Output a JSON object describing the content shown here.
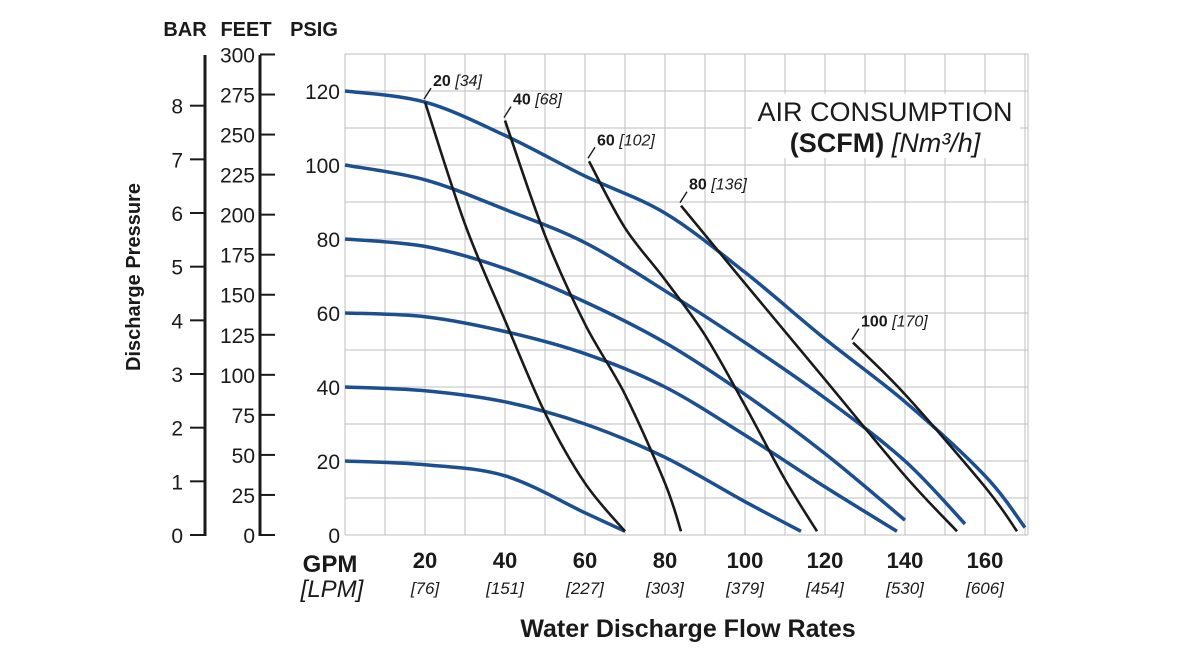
{
  "chart_data": {
    "type": "line",
    "title": "AIR CONSUMPTION",
    "subtitle_bold": "(SCFM)",
    "subtitle_italic": "[Nm³/h]",
    "xlabel": "Water Discharge Flow Rates",
    "ylabel": "Discharge Pressure",
    "x_unit": "GPM",
    "x_unit_alt": "[LPM]",
    "xlim": [
      0,
      170
    ],
    "ylim": [
      0,
      130
    ],
    "grid": true,
    "x_ticks": [
      {
        "gpm": "20",
        "lpm": "[76]"
      },
      {
        "gpm": "40",
        "lpm": "[151]"
      },
      {
        "gpm": "60",
        "lpm": "[227]"
      },
      {
        "gpm": "80",
        "lpm": "[303]"
      },
      {
        "gpm": "100",
        "lpm": "[379]"
      },
      {
        "gpm": "120",
        "lpm": "[454]"
      },
      {
        "gpm": "140",
        "lpm": "[530]"
      },
      {
        "gpm": "160",
        "lpm": "[606]"
      }
    ],
    "psig_axis": {
      "header": "PSIG",
      "ticks": [
        "0",
        "20",
        "40",
        "60",
        "80",
        "100",
        "120"
      ]
    },
    "feet_axis": {
      "header": "FEET",
      "ticks": [
        "0",
        "25",
        "50",
        "75",
        "100",
        "125",
        "150",
        "175",
        "200",
        "225",
        "250",
        "275",
        "300"
      ]
    },
    "bar_axis": {
      "header": "BAR",
      "ticks": [
        "0",
        "1",
        "2",
        "3",
        "4",
        "5",
        "6",
        "7",
        "8"
      ]
    },
    "performance_curves": [
      {
        "points": [
          [
            0,
            120
          ],
          [
            20,
            117
          ],
          [
            40,
            108
          ],
          [
            60,
            97
          ],
          [
            80,
            87
          ],
          [
            100,
            71
          ],
          [
            120,
            53
          ],
          [
            140,
            36
          ],
          [
            160,
            16
          ],
          [
            170,
            2
          ]
        ]
      },
      {
        "points": [
          [
            0,
            100
          ],
          [
            20,
            96
          ],
          [
            40,
            88
          ],
          [
            60,
            79
          ],
          [
            80,
            66
          ],
          [
            100,
            52
          ],
          [
            120,
            37
          ],
          [
            140,
            20
          ],
          [
            155,
            3
          ]
        ]
      },
      {
        "points": [
          [
            0,
            80
          ],
          [
            20,
            78
          ],
          [
            40,
            72
          ],
          [
            60,
            63
          ],
          [
            80,
            52
          ],
          [
            100,
            38
          ],
          [
            120,
            22
          ],
          [
            140,
            4
          ]
        ]
      },
      {
        "points": [
          [
            0,
            60
          ],
          [
            20,
            59
          ],
          [
            40,
            55
          ],
          [
            60,
            49
          ],
          [
            80,
            40
          ],
          [
            100,
            27
          ],
          [
            120,
            13
          ],
          [
            138,
            1
          ]
        ]
      },
      {
        "points": [
          [
            0,
            40
          ],
          [
            20,
            39
          ],
          [
            40,
            36
          ],
          [
            60,
            30
          ],
          [
            80,
            21
          ],
          [
            100,
            9
          ],
          [
            114,
            1
          ]
        ]
      },
      {
        "points": [
          [
            0,
            20
          ],
          [
            20,
            19
          ],
          [
            40,
            16
          ],
          [
            60,
            6
          ],
          [
            70,
            1
          ]
        ]
      }
    ],
    "air_curves": [
      {
        "label": "20",
        "label_alt": "[34]",
        "points": [
          [
            20,
            117
          ],
          [
            30,
            84
          ],
          [
            40,
            58
          ],
          [
            50,
            33
          ],
          [
            60,
            14
          ],
          [
            70,
            1
          ]
        ]
      },
      {
        "label": "40",
        "label_alt": "[68]",
        "points": [
          [
            40,
            112
          ],
          [
            50,
            81
          ],
          [
            60,
            57
          ],
          [
            70,
            38
          ],
          [
            80,
            14
          ],
          [
            84,
            1
          ]
        ]
      },
      {
        "label": "60",
        "label_alt": "[102]",
        "points": [
          [
            61,
            101
          ],
          [
            70,
            83
          ],
          [
            80,
            69
          ],
          [
            90,
            54
          ],
          [
            100,
            35
          ],
          [
            110,
            15
          ],
          [
            118,
            1
          ]
        ]
      },
      {
        "label": "80",
        "label_alt": "[136]",
        "points": [
          [
            84,
            89
          ],
          [
            100,
            68
          ],
          [
            120,
            42
          ],
          [
            140,
            16
          ],
          [
            153,
            1
          ]
        ]
      },
      {
        "label": "100",
        "label_alt": "[170]",
        "points": [
          [
            127,
            52
          ],
          [
            140,
            38
          ],
          [
            160,
            13
          ],
          [
            168,
            1
          ]
        ]
      }
    ]
  }
}
